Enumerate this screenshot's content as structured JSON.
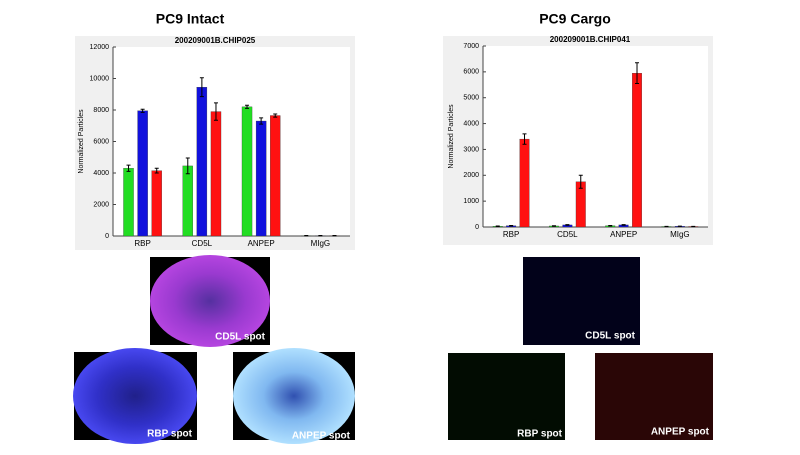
{
  "headings": [
    "PC9 Intact",
    "PC9 Cargo"
  ],
  "chart_data": [
    {
      "type": "bar",
      "title": "200209001B.CHIP025",
      "y_label": "Normalized Particles",
      "categories": [
        "RBP",
        "CD5L",
        "ANPEP",
        "MIgG"
      ],
      "series": [
        {
          "color": "#22dd22",
          "values": [
            4300,
            4450,
            8200,
            20
          ],
          "errors": [
            200,
            500,
            100,
            10
          ]
        },
        {
          "color": "#1111dd",
          "values": [
            7950,
            9450,
            7300,
            20
          ],
          "errors": [
            100,
            600,
            200,
            10
          ]
        },
        {
          "color": "#ff1111",
          "values": [
            4150,
            7900,
            7650,
            20
          ],
          "errors": [
            150,
            550,
            100,
            10
          ]
        }
      ],
      "ylim": [
        0,
        12000
      ],
      "yticks": [
        0,
        2000,
        4000,
        6000,
        8000,
        10000,
        12000
      ]
    },
    {
      "type": "bar",
      "title": "200209001B.CHIP041",
      "y_label": "Normalized Particles",
      "categories": [
        "RBP",
        "CD5L",
        "ANPEP",
        "MIgG"
      ],
      "series": [
        {
          "color": "#22dd22",
          "values": [
            30,
            40,
            50,
            20
          ],
          "errors": [
            10,
            10,
            10,
            5
          ]
        },
        {
          "color": "#1111dd",
          "values": [
            50,
            80,
            80,
            30
          ],
          "errors": [
            10,
            10,
            10,
            5
          ]
        },
        {
          "color": "#ff1111",
          "values": [
            3400,
            1750,
            5950,
            20
          ],
          "errors": [
            200,
            250,
            400,
            5
          ]
        }
      ],
      "ylim": [
        0,
        7000
      ],
      "yticks": [
        0,
        1000,
        2000,
        3000,
        4000,
        5000,
        6000,
        7000
      ]
    }
  ],
  "images": [
    "CD5L spot",
    "RBP spot",
    "ANPEP spot",
    "CD5L spot",
    "RBP spot",
    "ANPEP spot"
  ]
}
